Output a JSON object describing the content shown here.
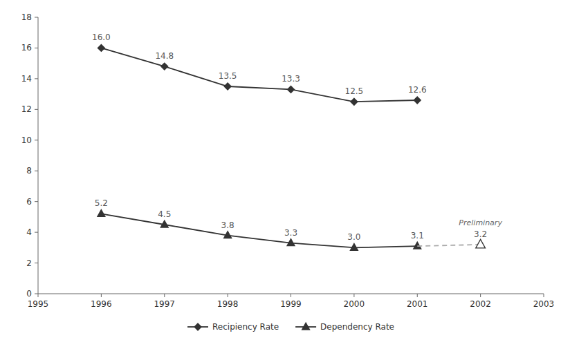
{
  "chart_data": {
    "type": "line",
    "series": [
      {
        "name": "Recipiency Rate",
        "color": "#333333",
        "marker": "diamond",
        "line_style": "solid",
        "x": [
          1996,
          1997,
          1998,
          1999,
          2000,
          2001
        ],
        "values": [
          16.0,
          14.8,
          13.5,
          13.3,
          12.5,
          12.6
        ],
        "value_labels": [
          "16.0",
          "14.8",
          "13.5",
          "13.3",
          "12.5",
          "12.6"
        ]
      },
      {
        "name": "Dependency Rate",
        "color": "#333333",
        "marker": "triangle",
        "line_style": "solid",
        "x": [
          1996,
          1997,
          1998,
          1999,
          2000,
          2001
        ],
        "values": [
          5.2,
          4.5,
          3.8,
          3.3,
          3.0,
          3.1
        ],
        "value_labels": [
          "5.2",
          "4.5",
          "3.8",
          "3.3",
          "3.0",
          "3.1"
        ]
      },
      {
        "color": "#aaaaaa",
        "marker": "none",
        "line_style": "dashed",
        "x": [
          2001,
          2002
        ],
        "values": [
          3.1,
          3.2
        ]
      },
      {
        "color": "#333333",
        "marker": "triangle-open",
        "line_style": "none",
        "x": [
          2002
        ],
        "values": [
          3.2
        ],
        "value_labels": [
          "3.2"
        ]
      }
    ],
    "annotations": [
      "Preliminary"
    ],
    "xlim": [
      1995,
      2003
    ],
    "xticks": [
      1995,
      1996,
      1997,
      1998,
      1999,
      2000,
      2001,
      2002,
      2003
    ],
    "ylim": [
      0,
      18
    ],
    "yticks": [
      0,
      2,
      4,
      6,
      8,
      10,
      12,
      14,
      16,
      18
    ],
    "grid": false,
    "legend": "bottom",
    "data_labels": true
  }
}
